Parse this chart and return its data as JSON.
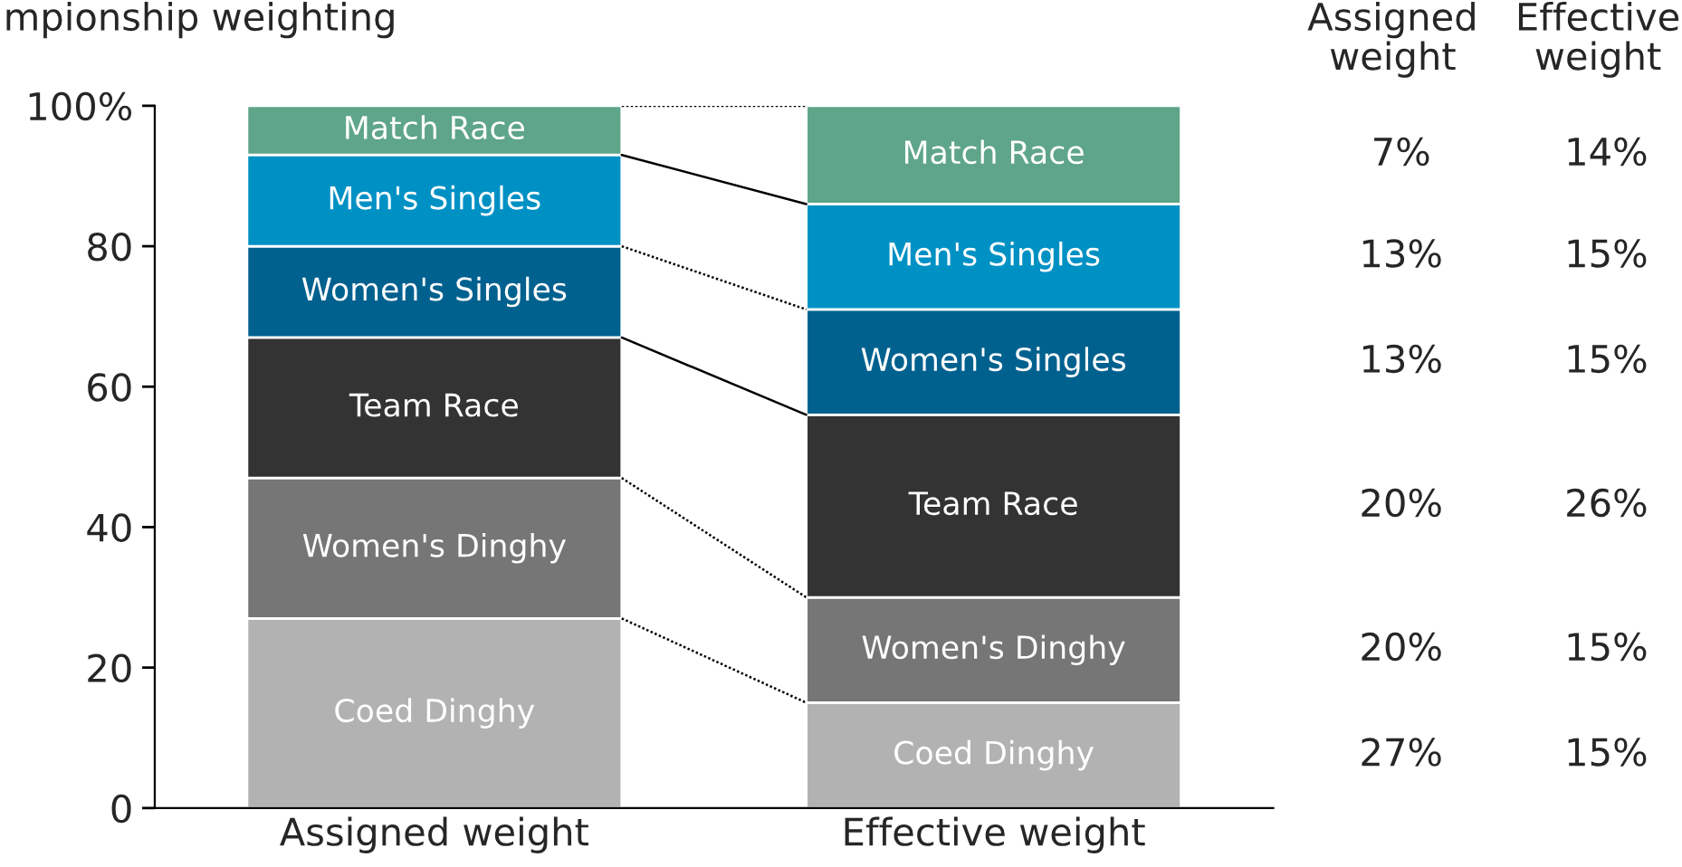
{
  "chart_data": {
    "type": "bar",
    "title": "mpionship weighting",
    "stacked": true,
    "categories": [
      "Assigned weight",
      "Effective weight"
    ],
    "series": [
      {
        "name": "Coed Dinghy",
        "color": "#b2b2b2",
        "values": [
          27,
          15
        ]
      },
      {
        "name": "Women's Dinghy",
        "color": "#767676",
        "values": [
          20,
          15
        ]
      },
      {
        "name": "Team Race",
        "color": "#333333",
        "values": [
          20,
          26
        ]
      },
      {
        "name": "Women's Singles",
        "color": "#00618f",
        "values": [
          13,
          15
        ]
      },
      {
        "name": "Men's Singles",
        "color": "#0091c4",
        "values": [
          13,
          15
        ]
      },
      {
        "name": "Match Race",
        "color": "#5fa58a",
        "values": [
          7,
          14
        ]
      }
    ],
    "annotations": [
      "Assigned\nweight",
      "Effective\nweight",
      "7%",
      "14%",
      "13%",
      "15%",
      "13%",
      "15%",
      "20%",
      "26%",
      "20%",
      "15%",
      "27%",
      "15%"
    ],
    "ylim": [
      0,
      100
    ],
    "yticks": [
      0,
      20,
      40,
      60,
      80,
      {
        "value": 100,
        "label": "100%"
      }
    ],
    "grid": false,
    "legend": false
  }
}
